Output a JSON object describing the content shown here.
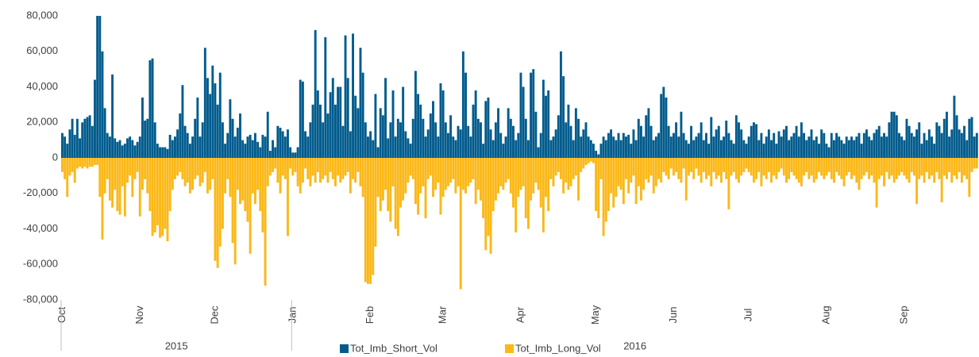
{
  "chart_data": {
    "type": "bar",
    "categories": [
      "Oct",
      null,
      null,
      null,
      null,
      null,
      null,
      null,
      null,
      null,
      null,
      null,
      null,
      null,
      null,
      null,
      null,
      null,
      null,
      null,
      null,
      null,
      null,
      null,
      null,
      null,
      null,
      null,
      null,
      null,
      null,
      "Nov",
      null,
      null,
      null,
      null,
      null,
      null,
      null,
      null,
      null,
      null,
      null,
      null,
      null,
      null,
      null,
      null,
      null,
      null,
      null,
      null,
      null,
      null,
      null,
      null,
      null,
      null,
      null,
      null,
      null,
      "Dec",
      null,
      null,
      null,
      null,
      null,
      null,
      null,
      null,
      null,
      null,
      null,
      null,
      null,
      null,
      null,
      null,
      null,
      null,
      null,
      null,
      null,
      null,
      null,
      null,
      null,
      null,
      null,
      null,
      null,
      null,
      "Jan",
      null,
      null,
      null,
      null,
      null,
      null,
      null,
      null,
      null,
      null,
      null,
      null,
      null,
      null,
      null,
      null,
      null,
      null,
      null,
      null,
      null,
      null,
      null,
      null,
      null,
      null,
      null,
      null,
      null,
      null,
      "Feb",
      null,
      null,
      null,
      null,
      null,
      null,
      null,
      null,
      null,
      null,
      null,
      null,
      null,
      null,
      null,
      null,
      null,
      null,
      null,
      null,
      null,
      null,
      null,
      null,
      null,
      null,
      null,
      null,
      "Mar",
      null,
      null,
      null,
      null,
      null,
      null,
      null,
      null,
      null,
      null,
      null,
      null,
      null,
      null,
      null,
      null,
      null,
      null,
      null,
      null,
      null,
      null,
      null,
      null,
      null,
      null,
      null,
      null,
      null,
      null,
      "Apr",
      null,
      null,
      null,
      null,
      null,
      null,
      null,
      null,
      null,
      null,
      null,
      null,
      null,
      null,
      null,
      null,
      null,
      null,
      null,
      null,
      null,
      null,
      null,
      null,
      null,
      null,
      null,
      null,
      null,
      "May",
      null,
      null,
      null,
      null,
      null,
      null,
      null,
      null,
      null,
      null,
      null,
      null,
      null,
      null,
      null,
      null,
      null,
      null,
      null,
      null,
      null,
      null,
      null,
      null,
      null,
      null,
      null,
      null,
      null,
      null,
      "Jun",
      null,
      null,
      null,
      null,
      null,
      null,
      null,
      null,
      null,
      null,
      null,
      null,
      null,
      null,
      null,
      null,
      null,
      null,
      null,
      null,
      null,
      null,
      null,
      null,
      null,
      null,
      null,
      null,
      null,
      "Jul",
      null,
      null,
      null,
      null,
      null,
      null,
      null,
      null,
      null,
      null,
      null,
      null,
      null,
      null,
      null,
      null,
      null,
      null,
      null,
      null,
      null,
      null,
      null,
      null,
      null,
      null,
      null,
      null,
      null,
      null,
      "Aug",
      null,
      null,
      null,
      null,
      null,
      null,
      null,
      null,
      null,
      null,
      null,
      null,
      null,
      null,
      null,
      null,
      null,
      null,
      null,
      null,
      null,
      null,
      null,
      null,
      null,
      null,
      null,
      null,
      null,
      null,
      "Sep",
      null,
      null,
      null,
      null,
      null,
      null,
      null,
      null,
      null,
      null,
      null,
      null,
      null,
      null,
      null,
      null,
      null,
      null,
      null,
      null,
      null,
      null,
      null,
      null,
      null,
      null,
      null,
      null,
      null
    ],
    "x_groups": [
      {
        "label": "2015",
        "first": "Oct"
      },
      {
        "label": "2016",
        "first": "Jan"
      }
    ],
    "series": [
      {
        "name": "Tot_Imb_Short_Vol",
        "color": "#005b8c",
        "values": [
          14000,
          12000,
          8000,
          16000,
          22000,
          13000,
          22000,
          11000,
          20000,
          22000,
          23000,
          24000,
          18000,
          44000,
          80000,
          80000,
          60000,
          28000,
          14000,
          12000,
          47000,
          11000,
          9000,
          10000,
          7000,
          8000,
          11000,
          12000,
          10000,
          7000,
          9000,
          12000,
          34000,
          21000,
          22000,
          55000,
          56000,
          20000,
          8000,
          6000,
          6000,
          6000,
          5000,
          13000,
          10000,
          12000,
          16000,
          25000,
          41000,
          18000,
          14000,
          8000,
          12000,
          22000,
          34000,
          12000,
          20000,
          62000,
          45000,
          36000,
          52000,
          42000,
          30000,
          48000,
          20000,
          8000,
          14000,
          33000,
          22000,
          12000,
          17000,
          25000,
          10000,
          8000,
          12000,
          13000,
          10000,
          14000,
          9000,
          6000,
          13000,
          12000,
          26000,
          4000,
          10000,
          6000,
          18000,
          17000,
          15000,
          12000,
          16000,
          6000,
          3000,
          3000,
          6000,
          44000,
          43000,
          15000,
          12000,
          20000,
          30000,
          72000,
          38000,
          30000,
          20000,
          68000,
          25000,
          37000,
          45000,
          30000,
          40000,
          40000,
          18000,
          69000,
          45000,
          15000,
          70000,
          35000,
          28000,
          62000,
          48000,
          20000,
          12000,
          15000,
          10000,
          36000,
          6000,
          28000,
          24000,
          45000,
          11000,
          20000,
          38000,
          12000,
          22000,
          20000,
          40000,
          15000,
          11000,
          8000,
          22000,
          49000,
          36000,
          30000,
          22000,
          12000,
          16000,
          25000,
          32000,
          20000,
          12000,
          42000,
          38000,
          20000,
          14000,
          24000,
          12000,
          10000,
          18000,
          16000,
          60000,
          48000,
          18000,
          12000,
          30000,
          38000,
          22000,
          20000,
          8000,
          32000,
          34000,
          16000,
          10000,
          20000,
          28000,
          14000,
          8000,
          12000,
          28000,
          22000,
          18000,
          10000,
          14000,
          48000,
          40000,
          22000,
          10000,
          48000,
          50000,
          26000,
          6000,
          14000,
          44000,
          35000,
          38000,
          10000,
          12000,
          16000,
          24000,
          60000,
          46000,
          20000,
          30000,
          18000,
          10000,
          28000,
          22000,
          12000,
          16000,
          20000,
          12000,
          10000,
          8000,
          4000,
          2000,
          8000,
          12000,
          10000,
          14000,
          16000,
          12000,
          10000,
          14000,
          10000,
          14000,
          12000,
          13000,
          8000,
          16000,
          10000,
          22000,
          18000,
          12000,
          24000,
          28000,
          18000,
          10000,
          12000,
          14000,
          36000,
          40000,
          34000,
          18000,
          12000,
          14000,
          20000,
          12000,
          26000,
          14000,
          10000,
          8000,
          18000,
          10000,
          12000,
          14000,
          20000,
          10000,
          14000,
          8000,
          23000,
          12000,
          16000,
          18000,
          10000,
          12000,
          21000,
          14000,
          10000,
          8000,
          24000,
          20000,
          16000,
          10000,
          8000,
          12000,
          18000,
          20000,
          19000,
          10000,
          14000,
          8000,
          12000,
          16000,
          10000,
          14000,
          8000,
          15000,
          12000,
          16000,
          18000,
          10000,
          12000,
          14000,
          18000,
          12000,
          20000,
          14000,
          10000,
          12000,
          16000,
          10000,
          12000,
          8000,
          16000,
          14000,
          8000,
          6000,
          14000,
          10000,
          14000,
          12000,
          10000,
          8000,
          12000,
          10000,
          12000,
          10000,
          12000,
          14000,
          8000,
          14000,
          16000,
          12000,
          10000,
          14000,
          16000,
          18000,
          12000,
          14000,
          12000,
          20000,
          26000,
          26000,
          24000,
          14000,
          12000,
          10000,
          22000,
          18000,
          14000,
          12000,
          16000,
          20000,
          8000,
          14000,
          10000,
          16000,
          12000,
          8000,
          20000,
          18000,
          14000,
          22000,
          26000,
          12000,
          16000,
          35000,
          24000,
          16000,
          14000,
          18000,
          10000,
          22000,
          23000,
          12000,
          14000
        ]
      },
      {
        "name": "Tot_Imb_Long_Vol",
        "color": "#fbb818",
        "values": [
          -8000,
          -12000,
          -22000,
          -10000,
          -8000,
          -14000,
          -6000,
          -5000,
          -6000,
          -5000,
          -6000,
          -5000,
          -5000,
          -4000,
          -4000,
          -22000,
          -46000,
          -20000,
          -12000,
          -24000,
          -28000,
          -18000,
          -30000,
          -32000,
          -16000,
          -33000,
          -14000,
          -10000,
          -22000,
          -12000,
          -8000,
          -33000,
          -18000,
          -12000,
          -20000,
          -30000,
          -44000,
          -42000,
          -38000,
          -45000,
          -44000,
          -40000,
          -47000,
          -30000,
          -18000,
          -12000,
          -10000,
          -8000,
          -12000,
          -16000,
          -14000,
          -20000,
          -18000,
          -12000,
          -10000,
          -16000,
          -14000,
          -8000,
          -20000,
          -18000,
          -12000,
          -58000,
          -62000,
          -50000,
          -40000,
          -20000,
          -12000,
          -22000,
          -48000,
          -60000,
          -18000,
          -26000,
          -24000,
          -30000,
          -36000,
          -54000,
          -20000,
          -26000,
          -18000,
          -30000,
          -42000,
          -72000,
          -16000,
          -10000,
          -8000,
          -6000,
          -14000,
          -20000,
          -10000,
          -12000,
          -44000,
          -6000,
          -10000,
          -8000,
          -16000,
          -20000,
          -14000,
          -6000,
          -12000,
          -16000,
          -10000,
          -14000,
          -8000,
          -14000,
          -12000,
          -10000,
          -14000,
          -8000,
          -12000,
          -16000,
          -10000,
          -14000,
          -12000,
          -10000,
          -8000,
          -20000,
          -12000,
          -14000,
          -8000,
          -16000,
          -22000,
          -70000,
          -71000,
          -71000,
          -66000,
          -50000,
          -22000,
          -30000,
          -24000,
          -18000,
          -30000,
          -36000,
          -16000,
          -40000,
          -44000,
          -28000,
          -24000,
          -20000,
          -14000,
          -10000,
          -12000,
          -26000,
          -32000,
          -20000,
          -16000,
          -34000,
          -12000,
          -10000,
          -22000,
          -18000,
          -14000,
          -32000,
          -22000,
          -18000,
          -16000,
          -14000,
          -12000,
          -20000,
          -16000,
          -74000,
          -18000,
          -20000,
          -16000,
          -14000,
          -12000,
          -26000,
          -18000,
          -24000,
          -34000,
          -52000,
          -44000,
          -54000,
          -30000,
          -24000,
          -20000,
          -16000,
          -18000,
          -14000,
          -12000,
          -20000,
          -28000,
          -42000,
          -22000,
          -18000,
          -16000,
          -34000,
          -40000,
          -24000,
          -20000,
          -14000,
          -18000,
          -28000,
          -42000,
          -22000,
          -30000,
          -12000,
          -16000,
          -10000,
          -8000,
          -12000,
          -20000,
          -14000,
          -18000,
          -16000,
          -12000,
          -10000,
          -24000,
          -8000,
          -6000,
          -4000,
          -3000,
          -2000,
          -3000,
          -30000,
          -34000,
          -12000,
          -44000,
          -36000,
          -30000,
          -20000,
          -28000,
          -22000,
          -16000,
          -18000,
          -26000,
          -12000,
          -20000,
          -14000,
          -10000,
          -26000,
          -16000,
          -24000,
          -18000,
          -12000,
          -14000,
          -10000,
          -20000,
          -16000,
          -12000,
          -14000,
          -8000,
          -10000,
          -12000,
          -6000,
          -10000,
          -8000,
          -12000,
          -14000,
          -6000,
          -24000,
          -10000,
          -8000,
          -12000,
          -6000,
          -10000,
          -14000,
          -8000,
          -12000,
          -10000,
          -16000,
          -8000,
          -12000,
          -10000,
          -14000,
          -8000,
          -12000,
          -29000,
          -10000,
          -8000,
          -12000,
          -14000,
          -10000,
          -8000,
          -6000,
          -8000,
          -10000,
          -14000,
          -12000,
          -8000,
          -16000,
          -10000,
          -12000,
          -8000,
          -14000,
          -10000,
          -12000,
          -8000,
          -6000,
          -10000,
          -14000,
          -12000,
          -8000,
          -10000,
          -12000,
          -14000,
          -16000,
          -10000,
          -8000,
          -12000,
          -10000,
          -14000,
          -12000,
          -8000,
          -10000,
          -12000,
          -10000,
          -8000,
          -12000,
          -14000,
          -8000,
          -10000,
          -12000,
          -16000,
          -10000,
          -8000,
          -12000,
          -10000,
          -14000,
          -18000,
          -12000,
          -10000,
          -8000,
          -12000,
          -10000,
          -14000,
          -28000,
          -12000,
          -10000,
          -16000,
          -8000,
          -12000,
          -10000,
          -14000,
          -12000,
          -10000,
          -8000,
          -10000,
          -12000,
          -14000,
          -8000,
          -10000,
          -26000,
          -12000,
          -10000,
          -14000,
          -8000,
          -12000,
          -10000,
          -14000,
          -8000,
          -12000,
          -25000,
          -10000,
          -12000,
          -8000,
          -14000,
          -10000,
          -12000,
          -8000,
          -14000,
          -10000,
          -12000,
          -22000,
          -8000,
          -6000,
          -6000
        ]
      }
    ],
    "ylim": [
      -80000,
      80000
    ],
    "yticks": [
      {
        "value": 80000,
        "label": "80,000"
      },
      {
        "value": 60000,
        "label": "60,000"
      },
      {
        "value": 40000,
        "label": "40,000"
      },
      {
        "value": 20000,
        "label": "20,000"
      },
      0,
      {
        "value": -20000,
        "label": "-20,000"
      },
      {
        "value": -40000,
        "label": "-40,000"
      },
      {
        "value": -60000,
        "label": "-60,000"
      },
      {
        "value": -80000,
        "label": "-80,000"
      }
    ],
    "grid": false,
    "legend": "bottom"
  }
}
